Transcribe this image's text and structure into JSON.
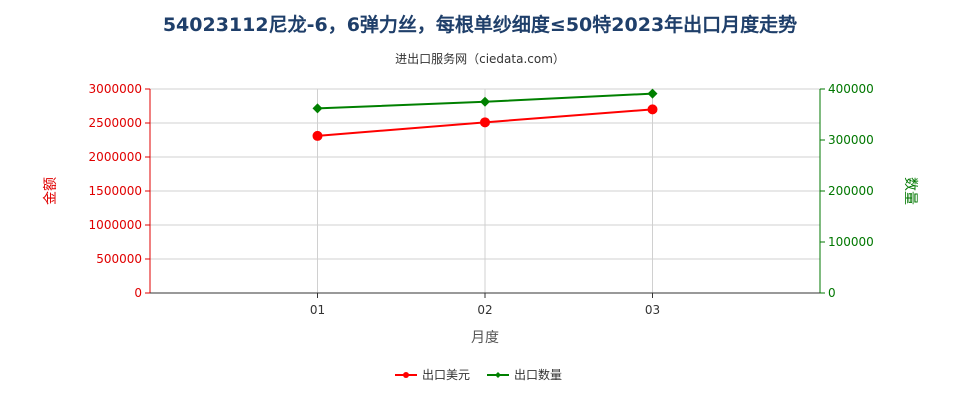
{
  "chart_data": {
    "type": "line",
    "title": "54023112尼龙-6，6弹力丝，每根单纱细度≤50特2023年出口月度走势",
    "subtitle": "进出口服务网（ciedata.com）",
    "xlabel": "月度",
    "categories": [
      "01",
      "02",
      "03"
    ],
    "y_left": {
      "label": "金额",
      "ylim": [
        0,
        3000000
      ],
      "ticks": [
        0,
        500000,
        1000000,
        1500000,
        2000000,
        2500000,
        3000000
      ]
    },
    "y_right": {
      "label": "数量",
      "ylim": [
        0,
        400000
      ],
      "ticks": [
        0,
        100000,
        200000,
        300000,
        400000
      ]
    },
    "series": [
      {
        "name": "出口美元",
        "axis": "left",
        "values": [
          2310000,
          2510000,
          2700000
        ],
        "color": "#ff0000"
      },
      {
        "name": "出口数量",
        "axis": "right",
        "values": [
          362000,
          375000,
          391000
        ],
        "color": "#008000"
      }
    ],
    "grid": true,
    "legend_position": "bottom"
  }
}
